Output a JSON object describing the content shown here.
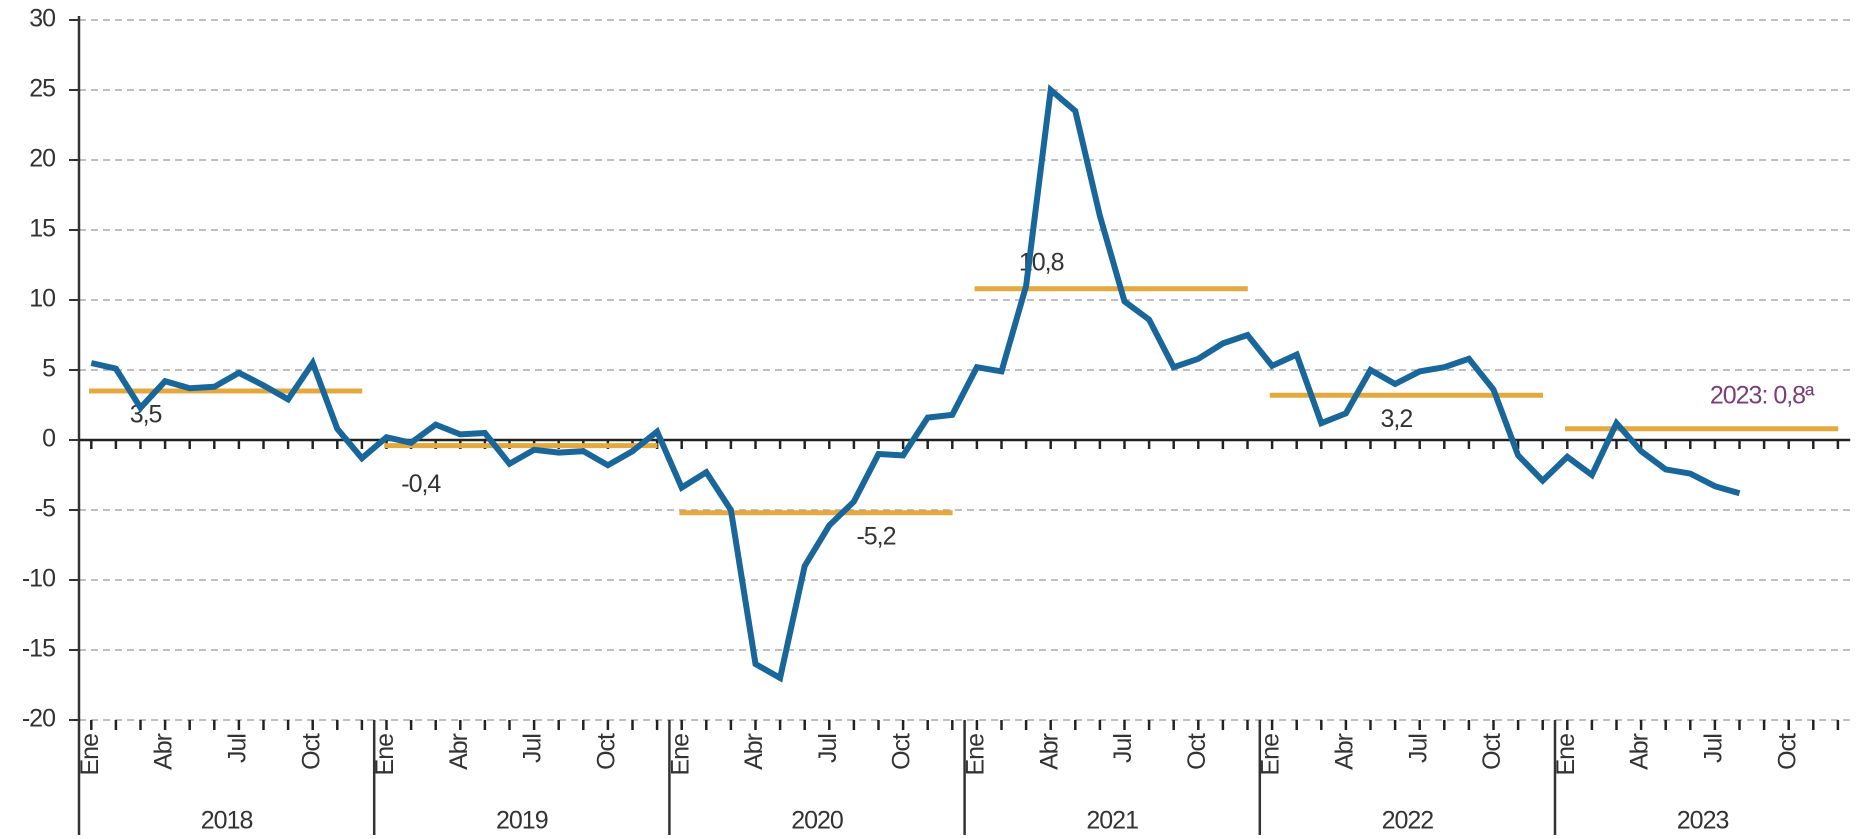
{
  "chart_data": {
    "type": "line",
    "categories": [
      "Ene",
      null,
      null,
      "Abr",
      null,
      null,
      "Jul",
      null,
      null,
      "Oct",
      null,
      null,
      "Ene",
      null,
      null,
      "Abr",
      null,
      null,
      "Jul",
      null,
      null,
      "Oct",
      null,
      null,
      "Ene",
      null,
      null,
      "Abr",
      null,
      null,
      "Jul",
      null,
      null,
      "Oct",
      null,
      null,
      "Ene",
      null,
      null,
      "Abr",
      null,
      null,
      "Jul",
      null,
      null,
      "Oct",
      null,
      null,
      "Ene",
      null,
      null,
      "Abr",
      null,
      null,
      "Jul",
      null,
      null,
      "Oct",
      null,
      null,
      "Ene",
      null,
      null,
      "Abr",
      null,
      null,
      "Jul",
      null,
      null,
      "Oct",
      null,
      null
    ],
    "years": [
      "2018",
      "2019",
      "2020",
      "2021",
      "2022",
      "2023"
    ],
    "series": [
      {
        "color": "#19679a",
        "values": [
          5.5,
          5.1,
          2.3,
          4.2,
          3.7,
          3.8,
          4.8,
          3.9,
          2.9,
          5.5,
          0.8,
          -1.3,
          0.2,
          -0.2,
          1.1,
          0.4,
          0.5,
          -1.7,
          -0.7,
          -0.9,
          -0.8,
          -1.8,
          -0.8,
          0.6,
          -3.4,
          -2.3,
          -5.0,
          -16.0,
          -17.0,
          -9.0,
          -6.1,
          -4.4,
          -1.0,
          -1.1,
          1.6,
          1.8,
          5.2,
          4.9,
          11.0,
          25.0,
          23.5,
          16.0,
          9.9,
          8.6,
          5.2,
          5.8,
          6.9,
          7.5,
          5.3,
          6.1,
          1.2,
          1.9,
          5.0,
          4.0,
          4.9,
          5.2,
          5.8,
          3.6,
          -1.1,
          -2.9,
          -1.2,
          -2.5,
          1.2,
          -0.8,
          -2.1,
          -2.4,
          -3.3,
          -3.8,
          null,
          null,
          null,
          null
        ]
      }
    ],
    "annual_averages": {
      "color": "#e3a93f",
      "values": [
        3.5,
        -0.4,
        -5.2,
        10.8,
        3.2,
        0.8
      ],
      "value_labels": [
        "3,5",
        "-0,4",
        "-5,2",
        "10,8",
        "3,2",
        "2023: 0,8ª"
      ],
      "value_label_colors": [
        "#333333",
        "#333333",
        "#333333",
        "#333333",
        "#333333",
        "#7a3e78"
      ]
    },
    "ylim": [
      -20,
      30
    ],
    "yticks": [
      -20,
      -15,
      -10,
      -5,
      0,
      5,
      10,
      15,
      20,
      25,
      30
    ],
    "grid": true
  }
}
